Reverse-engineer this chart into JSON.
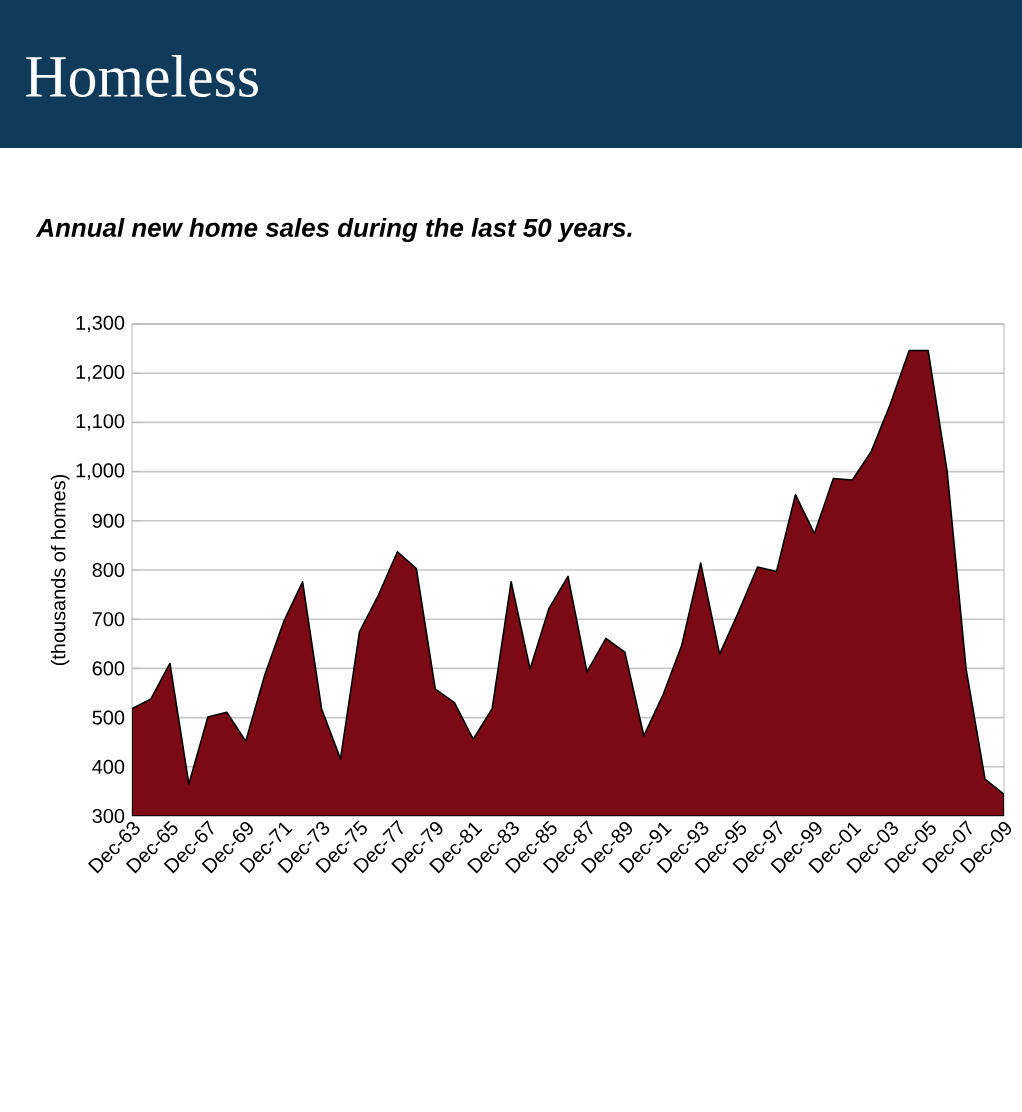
{
  "chart_data": {
    "type": "area",
    "title": "Homeless",
    "subtitle": "Annual new home sales during the last 50 years.",
    "ylabel": "(thousands of homes)",
    "categories": [
      "Dec-63",
      null,
      "Dec-65",
      null,
      "Dec-67",
      null,
      "Dec-69",
      null,
      "Dec-71",
      null,
      "Dec-73",
      null,
      "Dec-75",
      null,
      "Dec-77",
      null,
      "Dec-79",
      null,
      "Dec-81",
      null,
      "Dec-83",
      null,
      "Dec-85",
      null,
      "Dec-87",
      null,
      "Dec-89",
      null,
      "Dec-91",
      null,
      "Dec-93",
      null,
      "Dec-95",
      null,
      "Dec-97",
      null,
      "Dec-99",
      null,
      "Dec-01",
      null,
      "Dec-03",
      null,
      "Dec-05",
      null,
      "Dec-07",
      null,
      "Dec-09"
    ],
    "values": [
      518,
      538,
      610,
      365,
      501,
      511,
      452,
      586,
      695,
      776,
      518,
      416,
      674,
      749,
      837,
      803,
      558,
      531,
      456,
      518,
      776,
      599,
      722,
      787,
      593,
      661,
      633,
      463,
      545,
      647,
      814,
      629,
      715,
      806,
      797,
      953,
      874,
      986,
      983,
      1041,
      1137,
      1246,
      1246,
      1001,
      599,
      375,
      344
    ],
    "color": "#7b0a15",
    "ylim": [
      300,
      1300
    ],
    "yticks": [
      {
        "value": 300,
        "label": "300"
      },
      {
        "value": 400,
        "label": "400"
      },
      {
        "value": 500,
        "label": "500"
      },
      {
        "value": 600,
        "label": "600"
      },
      {
        "value": 700,
        "label": "700"
      },
      {
        "value": 800,
        "label": "800"
      },
      {
        "value": 900,
        "label": "900"
      },
      {
        "value": 1000,
        "label": "1,000"
      },
      {
        "value": 1100,
        "label": "1,100"
      },
      {
        "value": 1200,
        "label": "1,200"
      },
      {
        "value": 1300,
        "label": "1,300"
      }
    ],
    "grid": "y"
  }
}
